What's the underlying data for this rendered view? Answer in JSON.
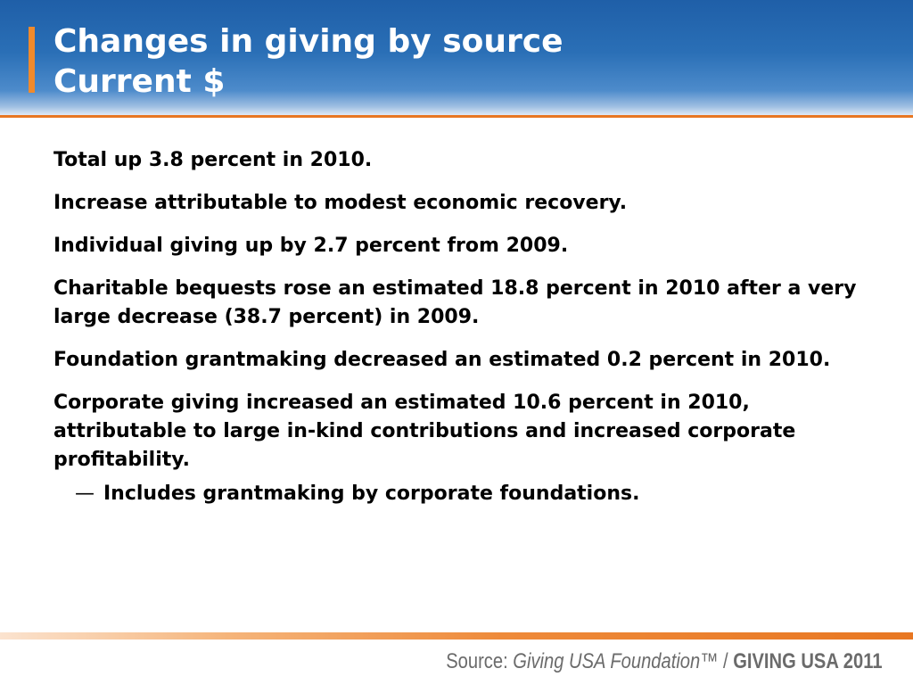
{
  "slide": {
    "title_line1": "Changes in giving by source",
    "title_line2": "Current $",
    "paragraphs": [
      "Total up 3.8 percent in 2010.",
      "Increase attributable to modest economic recovery.",
      "Individual giving up by 2.7 percent from 2009.",
      "Charitable bequests rose an estimated 18.8 percent in 2010 after a very large decrease (38.7 percent) in 2009.",
      "Foundation grantmaking decreased an estimated 0.2 percent in 2010.",
      "Corporate giving increased an estimated 10.6 percent in 2010, attributable to large in-kind contributions and increased corporate profitability."
    ],
    "sub_bullet": {
      "marker": "—",
      "text": "Includes grantmaking by corporate foundations."
    }
  },
  "footer": {
    "source_label": "Source: ",
    "source_foundation": "Giving USA Foundation™",
    "source_separator": " / ",
    "source_report": "GIVING USA 2011"
  },
  "colors": {
    "header_blue": "#2a6fb6",
    "accent_orange": "#e87722",
    "text": "#000000",
    "footer_text": "#6b6b6b"
  }
}
